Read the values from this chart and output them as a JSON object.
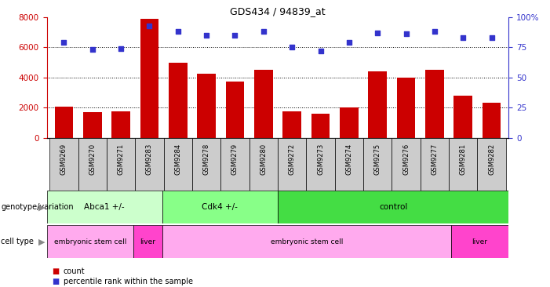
{
  "title": "GDS434 / 94839_at",
  "samples": [
    "GSM9269",
    "GSM9270",
    "GSM9271",
    "GSM9283",
    "GSM9284",
    "GSM9278",
    "GSM9279",
    "GSM9280",
    "GSM9272",
    "GSM9273",
    "GSM9274",
    "GSM9275",
    "GSM9276",
    "GSM9277",
    "GSM9281",
    "GSM9282"
  ],
  "counts": [
    2050,
    1700,
    1750,
    7900,
    5000,
    4250,
    3750,
    4500,
    1750,
    1600,
    2000,
    4400,
    4000,
    4500,
    2800,
    2300
  ],
  "percentiles": [
    79,
    73,
    74,
    93,
    88,
    85,
    85,
    88,
    75,
    72,
    79,
    87,
    86,
    88,
    83,
    83
  ],
  "bar_color": "#cc0000",
  "dot_color": "#3333cc",
  "ylim_left": [
    0,
    8000
  ],
  "ylim_right": [
    0,
    100
  ],
  "yticks_left": [
    0,
    2000,
    4000,
    6000,
    8000
  ],
  "yticks_right": [
    0,
    25,
    50,
    75,
    100
  ],
  "grid_lines": [
    2000,
    4000,
    6000
  ],
  "genotype_groups": [
    {
      "label": "Abca1 +/-",
      "start": 0,
      "end": 4,
      "color": "#ccffcc"
    },
    {
      "label": "Cdk4 +/-",
      "start": 4,
      "end": 8,
      "color": "#88ff88"
    },
    {
      "label": "control",
      "start": 8,
      "end": 16,
      "color": "#44dd44"
    }
  ],
  "celltype_groups": [
    {
      "label": "embryonic stem cell",
      "start": 0,
      "end": 3,
      "color": "#ffaaee"
    },
    {
      "label": "liver",
      "start": 3,
      "end": 4,
      "color": "#ff44cc"
    },
    {
      "label": "embryonic stem cell",
      "start": 4,
      "end": 14,
      "color": "#ffaaee"
    },
    {
      "label": "liver",
      "start": 14,
      "end": 16,
      "color": "#ff44cc"
    }
  ],
  "tick_bg_color": "#cccccc",
  "legend_count_color": "#cc0000",
  "legend_dot_color": "#3333cc",
  "bg_color": "#ffffff",
  "axis_label_color_left": "#cc0000",
  "axis_label_color_right": "#3333cc"
}
